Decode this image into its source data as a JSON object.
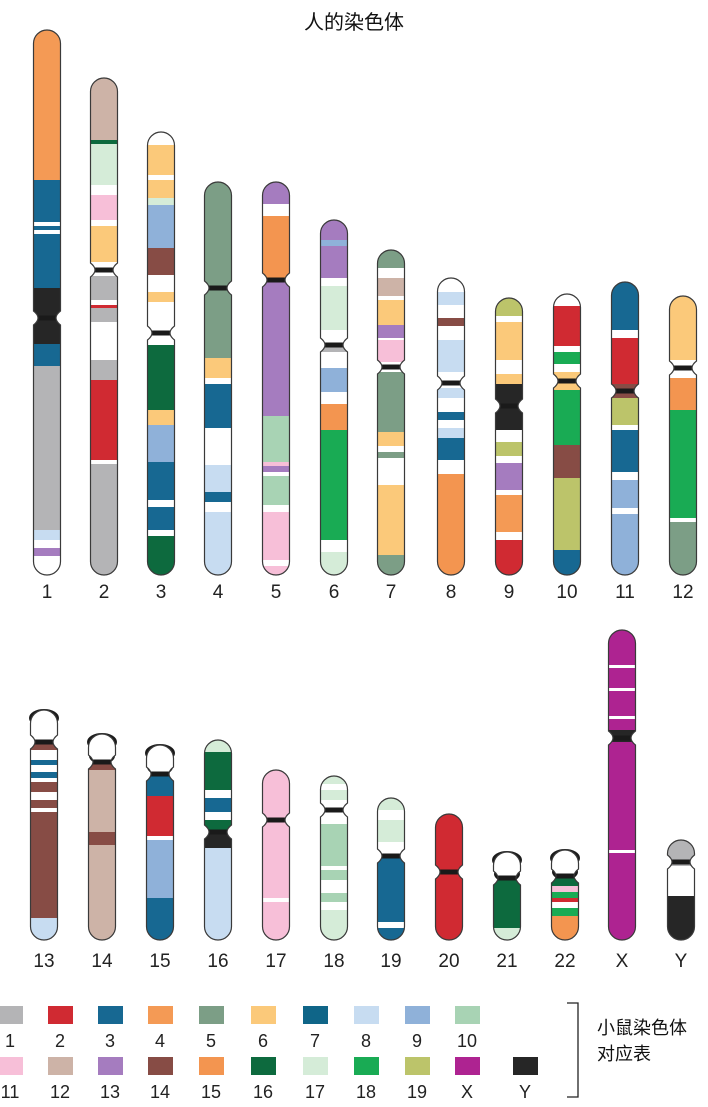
{
  "title": "人的染色体",
  "legend": {
    "caption_line1": "小鼠染色体",
    "caption_line2": "对应表",
    "row1": [
      {
        "label": "1",
        "color": "#b4b4b6"
      },
      {
        "label": "2",
        "color": "#d02a32"
      },
      {
        "label": "3",
        "color": "#176892"
      },
      {
        "label": "4",
        "color": "#f49a55"
      },
      {
        "label": "5",
        "color": "#7c9e86"
      },
      {
        "label": "6",
        "color": "#fbc97a"
      },
      {
        "label": "7",
        "color": "#0f6588"
      },
      {
        "label": "8",
        "color": "#c7dcf1"
      },
      {
        "label": "9",
        "color": "#8fb1d9"
      },
      {
        "label": "10",
        "color": "#a8d3b4"
      }
    ],
    "row2": [
      {
        "label": "11",
        "color": "#f7bfd8"
      },
      {
        "label": "12",
        "color": "#cdb3a7"
      },
      {
        "label": "13",
        "color": "#a57cbf"
      },
      {
        "label": "14",
        "color": "#874c45"
      },
      {
        "label": "15",
        "color": "#f39550"
      },
      {
        "label": "16",
        "color": "#0d6a3e"
      },
      {
        "label": "17",
        "color": "#d5ecd8"
      },
      {
        "label": "18",
        "color": "#19ab54"
      },
      {
        "label": "19",
        "color": "#bcc46a"
      },
      {
        "label": "X",
        "color": "#ae2391"
      },
      {
        "label": "Y",
        "color": "#262626"
      }
    ]
  },
  "chromosomes": [
    {
      "label": "1"
    },
    {
      "label": "2"
    },
    {
      "label": "3"
    },
    {
      "label": "4"
    },
    {
      "label": "5"
    },
    {
      "label": "6"
    },
    {
      "label": "7"
    },
    {
      "label": "8"
    },
    {
      "label": "9"
    },
    {
      "label": "10"
    },
    {
      "label": "11"
    },
    {
      "label": "12"
    },
    {
      "label": "13"
    },
    {
      "label": "14"
    },
    {
      "label": "15"
    },
    {
      "label": "16"
    },
    {
      "label": "17"
    },
    {
      "label": "18"
    },
    {
      "label": "19"
    },
    {
      "label": "20"
    },
    {
      "label": "21"
    },
    {
      "label": "22"
    },
    {
      "label": "X"
    },
    {
      "label": "Y"
    }
  ]
}
